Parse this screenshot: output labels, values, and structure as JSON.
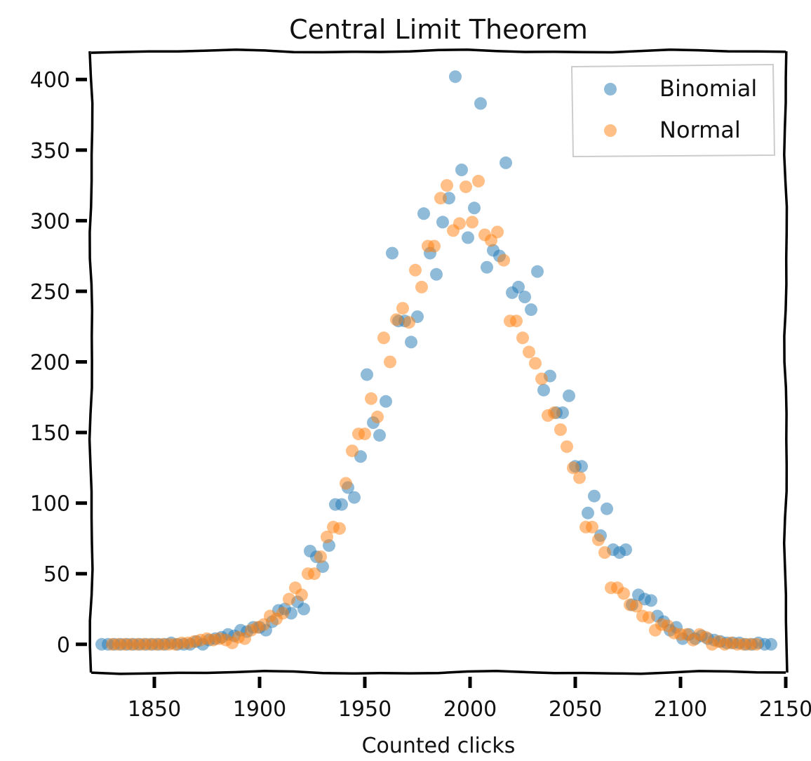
{
  "chart_data": {
    "type": "scatter",
    "title": "Central Limit Theorem",
    "xlabel": "Counted clicks",
    "ylabel": "",
    "xlim": [
      1820,
      2150
    ],
    "ylim": [
      -20,
      420
    ],
    "xticks": [
      1850,
      1900,
      1950,
      2000,
      2050,
      2100,
      2150
    ],
    "yticks": [
      0,
      50,
      100,
      150,
      200,
      250,
      300,
      350,
      400
    ],
    "legend_position": "top-right",
    "series": [
      {
        "name": "Binomial",
        "color": "#1f77b4",
        "points": [
          [
            1825,
            0
          ],
          [
            1828,
            0
          ],
          [
            1831,
            0
          ],
          [
            1834,
            0
          ],
          [
            1837,
            0
          ],
          [
            1840,
            0
          ],
          [
            1843,
            0
          ],
          [
            1846,
            0
          ],
          [
            1849,
            0
          ],
          [
            1852,
            0
          ],
          [
            1855,
            0
          ],
          [
            1858,
            1
          ],
          [
            1861,
            0
          ],
          [
            1864,
            0
          ],
          [
            1867,
            0
          ],
          [
            1870,
            2
          ],
          [
            1873,
            0
          ],
          [
            1876,
            3
          ],
          [
            1879,
            4
          ],
          [
            1882,
            5
          ],
          [
            1885,
            7
          ],
          [
            1888,
            6
          ],
          [
            1891,
            10
          ],
          [
            1894,
            9
          ],
          [
            1897,
            12
          ],
          [
            1900,
            12
          ],
          [
            1903,
            10
          ],
          [
            1906,
            16
          ],
          [
            1909,
            24
          ],
          [
            1912,
            25
          ],
          [
            1915,
            22
          ],
          [
            1918,
            30
          ],
          [
            1921,
            25
          ],
          [
            1924,
            66
          ],
          [
            1927,
            62
          ],
          [
            1930,
            55
          ],
          [
            1933,
            70
          ],
          [
            1936,
            99
          ],
          [
            1939,
            99
          ],
          [
            1942,
            111
          ],
          [
            1945,
            104
          ],
          [
            1948,
            133
          ],
          [
            1951,
            191
          ],
          [
            1954,
            157
          ],
          [
            1957,
            148
          ],
          [
            1960,
            172
          ],
          [
            1963,
            277
          ],
          [
            1966,
            229
          ],
          [
            1969,
            229
          ],
          [
            1972,
            214
          ],
          [
            1975,
            232
          ],
          [
            1978,
            305
          ],
          [
            1981,
            277
          ],
          [
            1984,
            262
          ],
          [
            1987,
            299
          ],
          [
            1990,
            316
          ],
          [
            1993,
            402
          ],
          [
            1996,
            336
          ],
          [
            1999,
            288
          ],
          [
            2002,
            309
          ],
          [
            2005,
            383
          ],
          [
            2008,
            267
          ],
          [
            2011,
            279
          ],
          [
            2014,
            275
          ],
          [
            2017,
            341
          ],
          [
            2020,
            249
          ],
          [
            2023,
            253
          ],
          [
            2026,
            246
          ],
          [
            2029,
            237
          ],
          [
            2032,
            264
          ],
          [
            2035,
            180
          ],
          [
            2038,
            190
          ],
          [
            2041,
            164
          ],
          [
            2044,
            164
          ],
          [
            2047,
            176
          ],
          [
            2050,
            126
          ],
          [
            2053,
            126
          ],
          [
            2056,
            93
          ],
          [
            2059,
            105
          ],
          [
            2062,
            77
          ],
          [
            2065,
            96
          ],
          [
            2068,
            67
          ],
          [
            2071,
            65
          ],
          [
            2074,
            67
          ],
          [
            2077,
            28
          ],
          [
            2080,
            35
          ],
          [
            2083,
            32
          ],
          [
            2086,
            31
          ],
          [
            2089,
            20
          ],
          [
            2092,
            16
          ],
          [
            2095,
            10
          ],
          [
            2098,
            12
          ],
          [
            2101,
            4
          ],
          [
            2104,
            7
          ],
          [
            2107,
            4
          ],
          [
            2110,
            6
          ],
          [
            2113,
            4
          ],
          [
            2116,
            3
          ],
          [
            2119,
            2
          ],
          [
            2122,
            1
          ],
          [
            2125,
            1
          ],
          [
            2128,
            1
          ],
          [
            2131,
            0
          ],
          [
            2134,
            0
          ],
          [
            2137,
            1
          ],
          [
            2140,
            0
          ],
          [
            2143,
            0
          ]
        ]
      },
      {
        "name": "Normal",
        "color": "#ff7f0e",
        "points": [
          [
            1830,
            0
          ],
          [
            1833,
            0
          ],
          [
            1836,
            0
          ],
          [
            1839,
            0
          ],
          [
            1842,
            0
          ],
          [
            1845,
            0
          ],
          [
            1848,
            0
          ],
          [
            1851,
            0
          ],
          [
            1854,
            0
          ],
          [
            1857,
            0
          ],
          [
            1860,
            0
          ],
          [
            1863,
            1
          ],
          [
            1866,
            1
          ],
          [
            1869,
            2
          ],
          [
            1872,
            3
          ],
          [
            1875,
            4
          ],
          [
            1878,
            3
          ],
          [
            1881,
            4
          ],
          [
            1884,
            3
          ],
          [
            1887,
            1
          ],
          [
            1890,
            5
          ],
          [
            1893,
            4
          ],
          [
            1896,
            10
          ],
          [
            1899,
            12
          ],
          [
            1902,
            14
          ],
          [
            1905,
            20
          ],
          [
            1908,
            18
          ],
          [
            1911,
            22
          ],
          [
            1914,
            32
          ],
          [
            1917,
            40
          ],
          [
            1920,
            35
          ],
          [
            1923,
            50
          ],
          [
            1926,
            50
          ],
          [
            1929,
            62
          ],
          [
            1932,
            76
          ],
          [
            1935,
            83
          ],
          [
            1938,
            82
          ],
          [
            1941,
            114
          ],
          [
            1944,
            137
          ],
          [
            1947,
            149
          ],
          [
            1950,
            149
          ],
          [
            1953,
            174
          ],
          [
            1956,
            161
          ],
          [
            1959,
            217
          ],
          [
            1962,
            200
          ],
          [
            1965,
            230
          ],
          [
            1968,
            238
          ],
          [
            1971,
            228
          ],
          [
            1974,
            265
          ],
          [
            1977,
            253
          ],
          [
            1980,
            282
          ],
          [
            1983,
            282
          ],
          [
            1986,
            316
          ],
          [
            1989,
            325
          ],
          [
            1992,
            293
          ],
          [
            1995,
            298
          ],
          [
            1998,
            324
          ],
          [
            2001,
            299
          ],
          [
            2004,
            328
          ],
          [
            2007,
            290
          ],
          [
            2010,
            286
          ],
          [
            2013,
            292
          ],
          [
            2016,
            272
          ],
          [
            2019,
            229
          ],
          [
            2022,
            229
          ],
          [
            2025,
            217
          ],
          [
            2028,
            207
          ],
          [
            2031,
            199
          ],
          [
            2034,
            188
          ],
          [
            2037,
            162
          ],
          [
            2040,
            164
          ],
          [
            2043,
            152
          ],
          [
            2046,
            140
          ],
          [
            2049,
            125
          ],
          [
            2052,
            118
          ],
          [
            2055,
            83
          ],
          [
            2058,
            83
          ],
          [
            2061,
            74
          ],
          [
            2064,
            65
          ],
          [
            2067,
            40
          ],
          [
            2070,
            40
          ],
          [
            2073,
            36
          ],
          [
            2076,
            28
          ],
          [
            2079,
            27
          ],
          [
            2082,
            20
          ],
          [
            2085,
            19
          ],
          [
            2088,
            10
          ],
          [
            2091,
            14
          ],
          [
            2094,
            13
          ],
          [
            2097,
            8
          ],
          [
            2100,
            7
          ],
          [
            2103,
            7
          ],
          [
            2106,
            3
          ],
          [
            2109,
            7
          ],
          [
            2112,
            5
          ],
          [
            2115,
            0
          ],
          [
            2118,
            2
          ],
          [
            2121,
            0
          ],
          [
            2124,
            1
          ],
          [
            2127,
            0
          ],
          [
            2130,
            0
          ],
          [
            2133,
            0
          ],
          [
            2136,
            0
          ]
        ]
      }
    ]
  }
}
